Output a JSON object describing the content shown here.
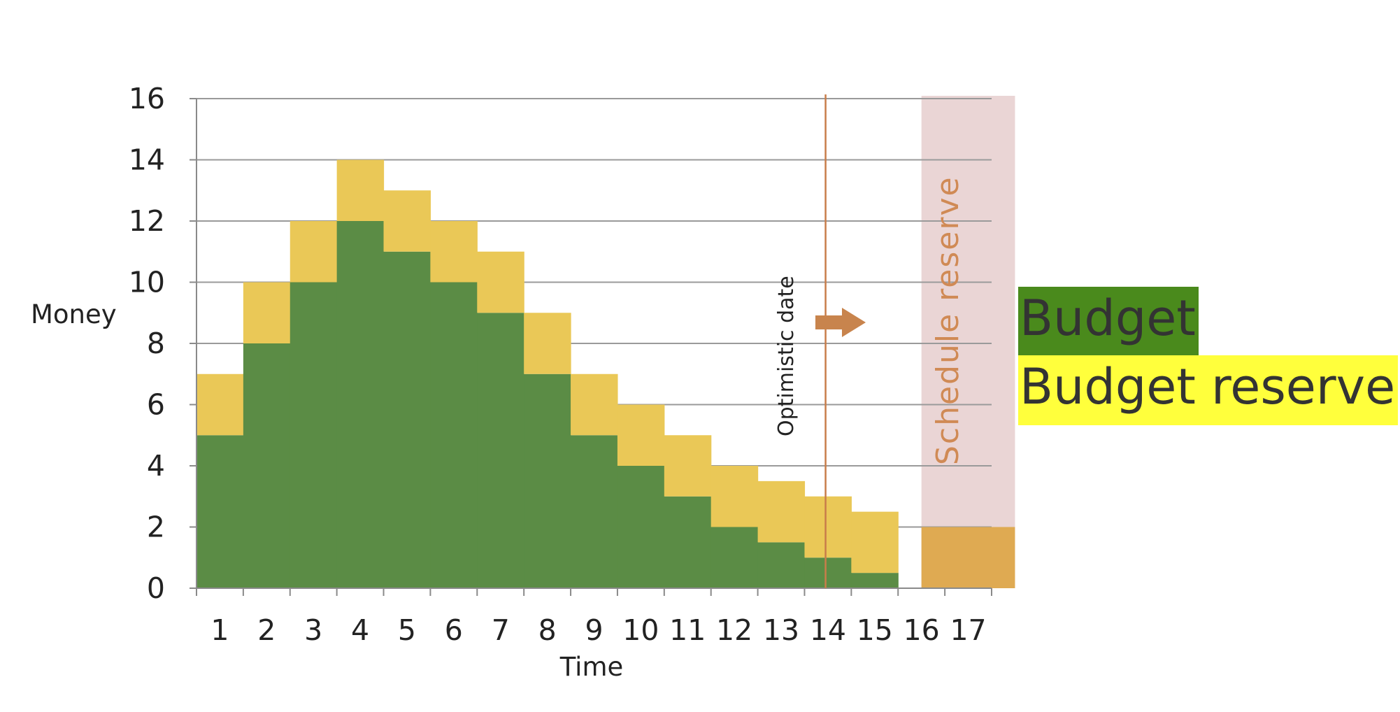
{
  "chart_data": {
    "type": "bar",
    "stacked": true,
    "xlabel": "Time",
    "ylabel": "Money",
    "ylim": [
      0,
      16
    ],
    "yticks": [
      0,
      2,
      4,
      6,
      8,
      10,
      12,
      14,
      16
    ],
    "categories": [
      "1",
      "2",
      "3",
      "4",
      "5",
      "6",
      "7",
      "8",
      "9",
      "10",
      "11",
      "12",
      "13",
      "14",
      "15",
      "16",
      "17"
    ],
    "series": [
      {
        "name": "Budget",
        "color": "#5b8c45",
        "values": [
          5,
          8,
          10,
          12,
          11,
          10,
          9,
          7,
          5,
          4,
          3,
          2,
          1.5,
          1,
          0.5,
          null,
          null
        ]
      },
      {
        "name": "Budget reserve",
        "color": "#eac857",
        "values": [
          2,
          2,
          2,
          2,
          2,
          2,
          2,
          2,
          2,
          2,
          2,
          2,
          2,
          2,
          2,
          null,
          null
        ]
      }
    ],
    "schedule_reserve": {
      "label": "Schedule reserve",
      "x_from": 16,
      "x_to": 17,
      "band_color": "#ead5d5",
      "bar_value": 2,
      "bar_color": "#dfaa52",
      "text_color": "#d08a55"
    },
    "optimistic_date": {
      "label": "Optimistic date",
      "x": 13.95,
      "color": "#c87d4a"
    },
    "arrow_color": "#c8844d",
    "grid": "horizontal",
    "legend": {
      "placement": "right",
      "items": [
        {
          "label": "Budget",
          "background": "#4a8a1c"
        },
        {
          "label": "Budget reserve",
          "background": "#ffff3c"
        }
      ]
    }
  }
}
